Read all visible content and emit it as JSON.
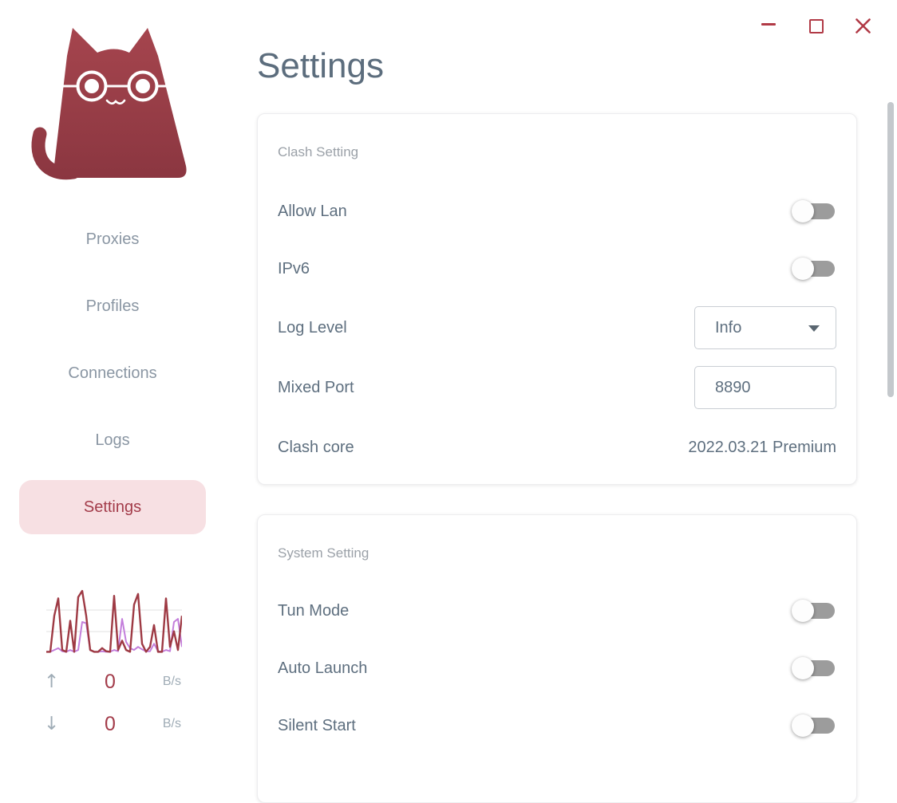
{
  "window": {
    "controls": {
      "minimize": "minimize",
      "maximize": "maximize",
      "close": "close"
    },
    "accent_color": "#b13a46"
  },
  "sidebar": {
    "logo": "clash-cat-logo",
    "items": [
      {
        "label": "Proxies",
        "active": false
      },
      {
        "label": "Profiles",
        "active": false
      },
      {
        "label": "Connections",
        "active": false
      },
      {
        "label": "Logs",
        "active": false
      },
      {
        "label": "Settings",
        "active": true
      }
    ],
    "active_bg": "#f7e0e3",
    "active_color": "#a33c4a",
    "traffic": {
      "upload": {
        "arrow": "↑",
        "value": "0",
        "unit": "B/s"
      },
      "download": {
        "arrow": "↓",
        "value": "0",
        "unit": "B/s"
      }
    }
  },
  "main": {
    "title": "Settings",
    "cards": [
      {
        "header": "Clash Setting",
        "rows": [
          {
            "label": "Allow Lan",
            "type": "toggle",
            "state": "off"
          },
          {
            "label": "IPv6",
            "type": "toggle",
            "state": "off"
          },
          {
            "label": "Log Level",
            "type": "select",
            "value": "Info"
          },
          {
            "label": "Mixed Port",
            "type": "input",
            "value": "8890"
          },
          {
            "label": "Clash core",
            "type": "text",
            "value": "2022.03.21 Premium"
          }
        ]
      },
      {
        "header": "System Setting",
        "rows": [
          {
            "label": "Tun Mode",
            "type": "toggle",
            "state": "off"
          },
          {
            "label": "Auto Launch",
            "type": "toggle",
            "state": "off"
          },
          {
            "label": "Silent Start",
            "type": "toggle",
            "state": "off"
          }
        ]
      }
    ]
  },
  "chart_data": {
    "type": "line",
    "title": "",
    "xlabel": "",
    "ylabel": "",
    "ylim": [
      0,
      100
    ],
    "grid": "two-horizontal-lines",
    "legend": "none",
    "x": [
      0,
      5,
      10,
      15,
      20,
      25,
      30,
      35,
      40,
      45,
      50,
      55,
      60,
      65,
      70,
      75,
      80,
      85,
      90,
      95,
      100,
      105,
      110,
      115,
      120,
      125,
      130,
      135,
      140,
      145,
      150,
      155,
      160,
      165,
      170
    ],
    "series": [
      {
        "name": "upload",
        "color": "#c37edb",
        "values": [
          2,
          2,
          5,
          8,
          3,
          2,
          5,
          2,
          5,
          50,
          48,
          5,
          2,
          2,
          3,
          2,
          2,
          5,
          3,
          55,
          18,
          8,
          5,
          10,
          6,
          3,
          3,
          15,
          3,
          2,
          5,
          3,
          50,
          55,
          10
        ]
      },
      {
        "name": "download",
        "color": "#9e3a44",
        "values": [
          2,
          2,
          60,
          88,
          5,
          2,
          52,
          2,
          90,
          100,
          60,
          5,
          2,
          2,
          8,
          3,
          2,
          92,
          5,
          20,
          5,
          2,
          78,
          95,
          15,
          2,
          10,
          45,
          2,
          2,
          88,
          10,
          35,
          5,
          60
        ]
      }
    ]
  }
}
